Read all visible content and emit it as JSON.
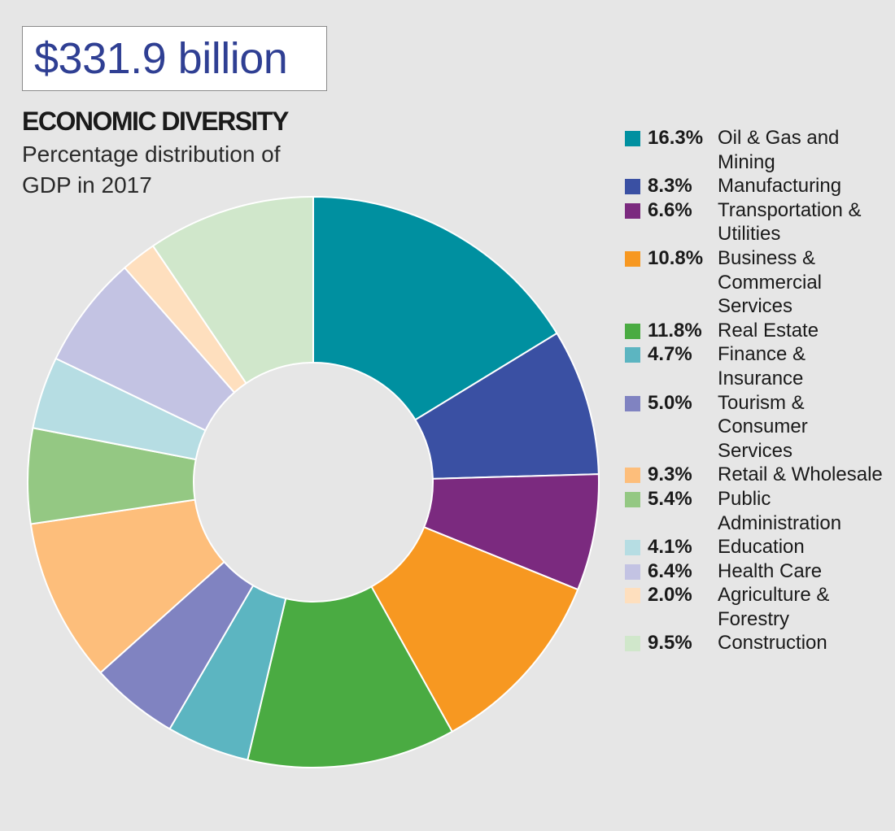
{
  "header": {
    "total": "$331.9 billion"
  },
  "chart_data": {
    "type": "pie",
    "donut": true,
    "title": "ECONOMIC DIVERSITY",
    "subtitle": "Percentage distribution of GDP in 2017",
    "legend_position": "right",
    "unit": "%",
    "slices": [
      {
        "label": "Oil & Gas and Mining",
        "value": 16.3,
        "display": "16.3%",
        "color": "#0090a0"
      },
      {
        "label": "Manufacturing",
        "value": 8.3,
        "display": "8.3%",
        "color": "#3a50a3"
      },
      {
        "label": "Transportation & Utilities",
        "value": 6.6,
        "display": "6.6%",
        "color": "#7b2a7f"
      },
      {
        "label": "Business & Commercial Services",
        "value": 10.8,
        "display": "10.8%",
        "color": "#f79821"
      },
      {
        "label": "Real Estate",
        "value": 11.8,
        "display": "11.8%",
        "color": "#4aab42"
      },
      {
        "label": "Finance & Insurance",
        "value": 4.7,
        "display": "4.7%",
        "color": "#5cb5c1"
      },
      {
        "label": "Tourism & Consumer Services",
        "value": 5.0,
        "display": "5.0%",
        "color": "#8083c1"
      },
      {
        "label": "Retail & Wholesale",
        "value": 9.3,
        "display": "9.3%",
        "color": "#fdbe7b"
      },
      {
        "label": "Public Administration",
        "value": 5.4,
        "display": "5.4%",
        "color": "#94c883"
      },
      {
        "label": "Education",
        "value": 4.1,
        "display": "4.1%",
        "color": "#b6dde3"
      },
      {
        "label": "Health Care",
        "value": 6.4,
        "display": "6.4%",
        "color": "#c3c3e3"
      },
      {
        "label": "Agriculture & Forestry",
        "value": 2.0,
        "display": "2.0%",
        "color": "#fedfbe"
      },
      {
        "label": "Construction",
        "value": 9.5,
        "display": "9.5%",
        "color": "#d0e7cb"
      }
    ]
  }
}
